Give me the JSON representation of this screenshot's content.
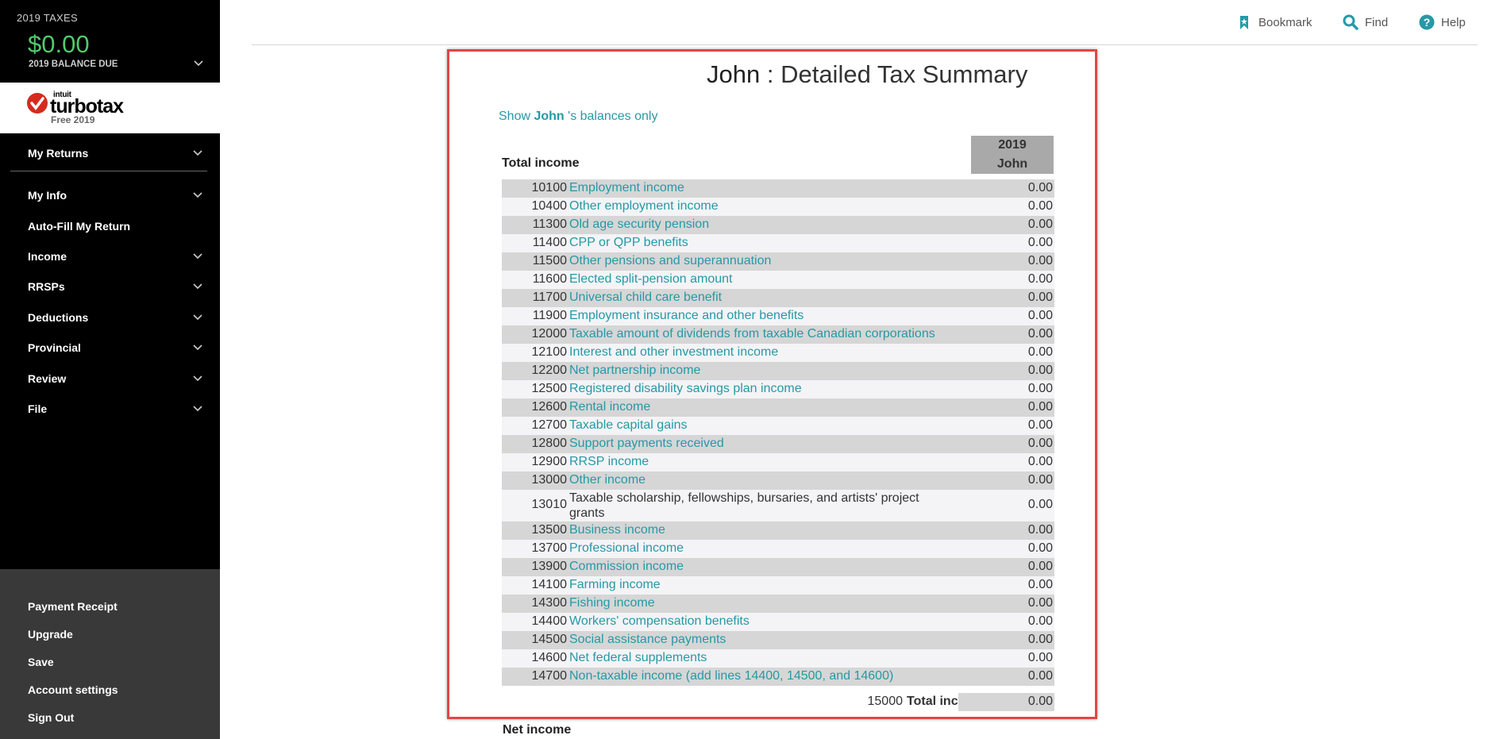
{
  "sidebar": {
    "tax_year": "2019 TAXES",
    "balance_amount": "$0.00",
    "balance_label": "2019 BALANCE DUE",
    "logo": {
      "intuit": "intuit",
      "word": "turbotax",
      "edition": "Free 2019"
    },
    "nav": [
      {
        "label": "My Returns",
        "chevron": true
      },
      {
        "label": "My Info",
        "chevron": true
      },
      {
        "label": "Auto-Fill My Return",
        "chevron": false
      },
      {
        "label": "Income",
        "chevron": true
      },
      {
        "label": "RRSPs",
        "chevron": true
      },
      {
        "label": "Deductions",
        "chevron": true
      },
      {
        "label": "Provincial",
        "chevron": true
      },
      {
        "label": "Review",
        "chevron": true
      },
      {
        "label": "File",
        "chevron": true
      }
    ],
    "bottom": [
      "Payment Receipt",
      "Upgrade",
      "Save",
      "Account settings",
      "Sign Out"
    ]
  },
  "topbar": {
    "bookmark": "Bookmark",
    "find": "Find",
    "help": "Help"
  },
  "summary": {
    "name": "John",
    "title_suffix": " : Detailed Tax Summary",
    "show_prefix": "Show ",
    "show_name": "John",
    "show_suffix": " 's balances only",
    "column_year": "2019",
    "column_name": "John",
    "section": "Total income",
    "rows": [
      {
        "code": "10100",
        "desc": "Employment income",
        "amount": "0.00",
        "link": true
      },
      {
        "code": "10400",
        "desc": "Other employment income",
        "amount": "0.00",
        "link": true
      },
      {
        "code": "11300",
        "desc": "Old age security pension",
        "amount": "0.00",
        "link": true
      },
      {
        "code": "11400",
        "desc": "CPP or QPP benefits",
        "amount": "0.00",
        "link": true
      },
      {
        "code": "11500",
        "desc": "Other pensions and superannuation",
        "amount": "0.00",
        "link": true
      },
      {
        "code": "11600",
        "desc": "Elected split-pension amount",
        "amount": "0.00",
        "link": true
      },
      {
        "code": "11700",
        "desc": "Universal child care benefit",
        "amount": "0.00",
        "link": true
      },
      {
        "code": "11900",
        "desc": "Employment insurance and other benefits",
        "amount": "0.00",
        "link": true
      },
      {
        "code": "12000",
        "desc": "Taxable amount of dividends from taxable Canadian corporations",
        "amount": "0.00",
        "link": true
      },
      {
        "code": "12100",
        "desc": "Interest and other investment income",
        "amount": "0.00",
        "link": true
      },
      {
        "code": "12200",
        "desc": "Net partnership income",
        "amount": "0.00",
        "link": true
      },
      {
        "code": "12500",
        "desc": "Registered disability savings plan income",
        "amount": "0.00",
        "link": true
      },
      {
        "code": "12600",
        "desc": "Rental income",
        "amount": "0.00",
        "link": true
      },
      {
        "code": "12700",
        "desc": "Taxable capital gains",
        "amount": "0.00",
        "link": true
      },
      {
        "code": "12800",
        "desc": "Support payments received",
        "amount": "0.00",
        "link": true
      },
      {
        "code": "12900",
        "desc": "RRSP income",
        "amount": "0.00",
        "link": true
      },
      {
        "code": "13000",
        "desc": "Other income",
        "amount": "0.00",
        "link": true
      },
      {
        "code": "13010",
        "desc": "Taxable scholarship, fellowships, bursaries, and artists' project grants",
        "amount": "0.00",
        "link": false
      },
      {
        "code": "13500",
        "desc": "Business income",
        "amount": "0.00",
        "link": true
      },
      {
        "code": "13700",
        "desc": "Professional income",
        "amount": "0.00",
        "link": true
      },
      {
        "code": "13900",
        "desc": "Commission income",
        "amount": "0.00",
        "link": true
      },
      {
        "code": "14100",
        "desc": "Farming income",
        "amount": "0.00",
        "link": true
      },
      {
        "code": "14300",
        "desc": "Fishing income",
        "amount": "0.00",
        "link": true
      },
      {
        "code": "14400",
        "desc": "Workers' compensation benefits",
        "amount": "0.00",
        "link": true
      },
      {
        "code": "14500",
        "desc": "Social assistance payments",
        "amount": "0.00",
        "link": true
      },
      {
        "code": "14600",
        "desc": "Net federal supplements",
        "amount": "0.00",
        "link": true
      },
      {
        "code": "14700",
        "desc": "Non-taxable income (add lines 14400, 14500, and 14600)",
        "amount": "0.00",
        "link": true
      }
    ],
    "total_code": "15000",
    "total_label": "Total income",
    "total_amount": "0.00",
    "next_section": "Net income"
  },
  "colors": {
    "link": "#2699a6",
    "balance": "#52c96a",
    "highlight_border": "#e04646"
  }
}
